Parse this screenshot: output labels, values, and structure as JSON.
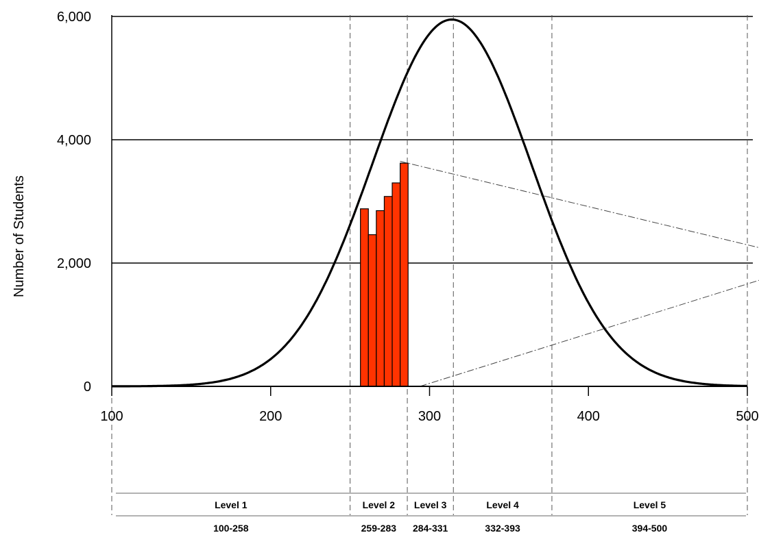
{
  "chart_data": {
    "type": "bar",
    "ylabel": "Number of Students",
    "xlim": [
      100,
      500
    ],
    "ylim": [
      0,
      6000
    ],
    "x_ticks": [
      100,
      200,
      300,
      400,
      500
    ],
    "y_ticks": [
      0,
      2000,
      4000,
      6000
    ],
    "y_tick_labels": [
      "0",
      "2,000",
      "4,000",
      "6,000"
    ],
    "grid": "horizontal",
    "bars": {
      "x": [
        259,
        264,
        269,
        274,
        279,
        284
      ],
      "values": [
        2880,
        2460,
        2850,
        3080,
        3300,
        3620
      ],
      "color": "#ff3300"
    },
    "curve": {
      "type": "normal",
      "mean": 314,
      "sd": 50,
      "peak": 5950
    },
    "boundaries": [
      100,
      250,
      286,
      315,
      377,
      500
    ],
    "levels": [
      {
        "label": "Level 1",
        "range": "100-258"
      },
      {
        "label": "Level 2",
        "range": "259-283"
      },
      {
        "label": "Level 3",
        "range": "284-331"
      },
      {
        "label": "Level 4",
        "range": "332-393"
      },
      {
        "label": "Level 5",
        "range": "394-500"
      }
    ]
  }
}
